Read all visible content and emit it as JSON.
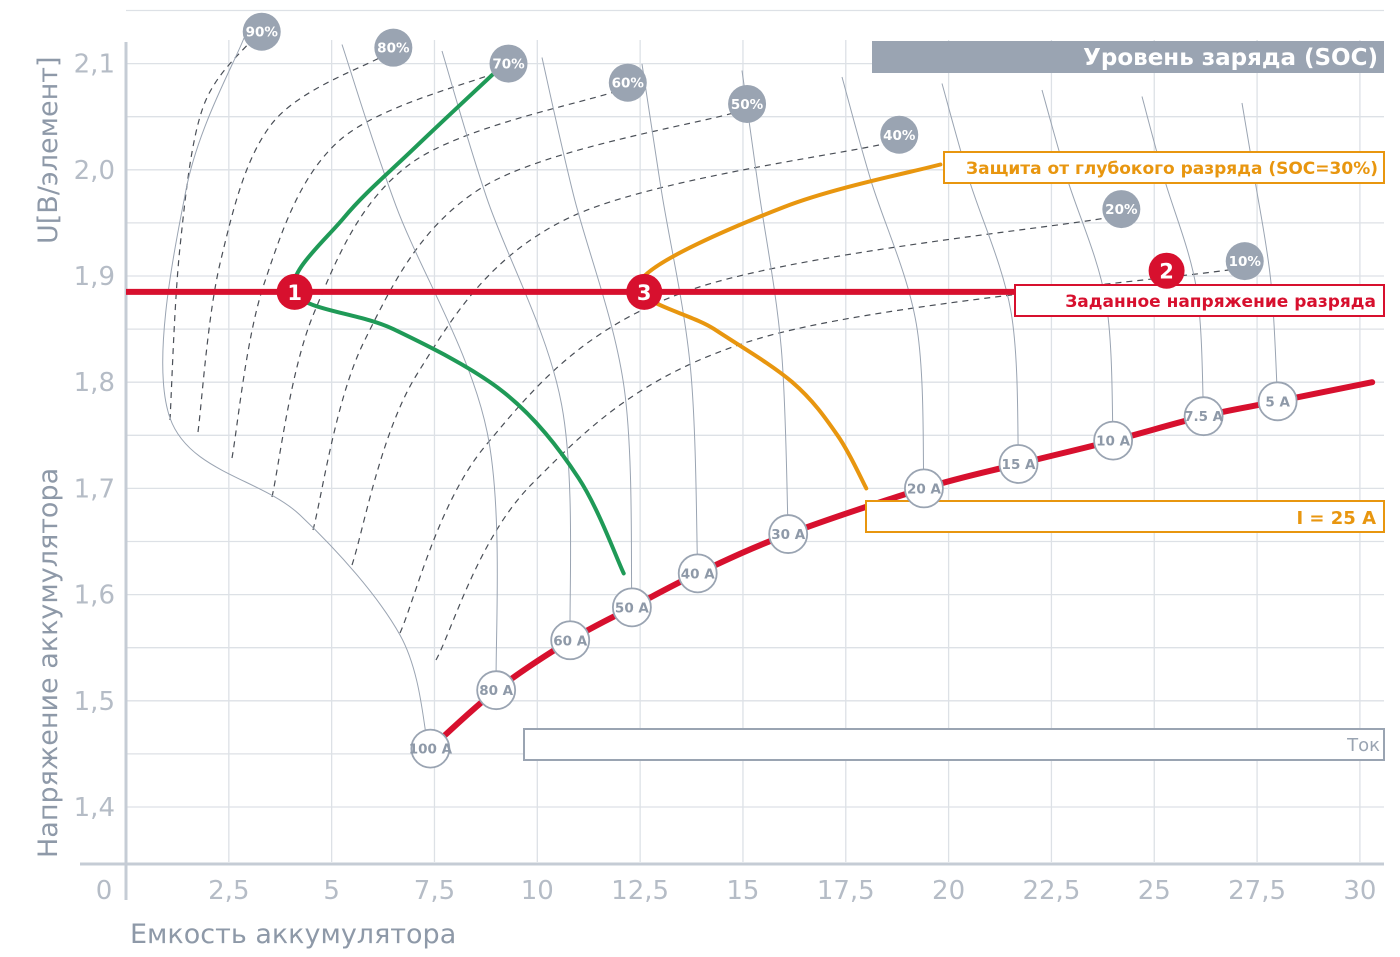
{
  "chart_data": {
    "type": "line",
    "title": "Уровень заряда (SOC)",
    "xlabel": "Емкость аккумулятора",
    "ylabel_top": "U[В/элемент]",
    "ylabel": "Напряжение аккумулятора",
    "xlim": [
      0,
      30
    ],
    "ylim": [
      1.35,
      2.15
    ],
    "x_ticks": [
      "0",
      "2,5",
      "5",
      "7,5",
      "10",
      "12,5",
      "15",
      "17,5",
      "20",
      "22,5",
      "25",
      "27,5",
      "30"
    ],
    "y_ticks": [
      "1,4",
      "1,5",
      "1,6",
      "1,7",
      "1,8",
      "1,9",
      "2,0",
      "2,1"
    ],
    "grid": true,
    "soc_levels": [
      {
        "label": "90%",
        "x": 3.3,
        "y": 2.13
      },
      {
        "label": "80%",
        "x": 6.5,
        "y": 2.115
      },
      {
        "label": "70%",
        "x": 9.3,
        "y": 2.1
      },
      {
        "label": "60%",
        "x": 12.2,
        "y": 2.082
      },
      {
        "label": "50%",
        "x": 15.1,
        "y": 2.062
      },
      {
        "label": "40%",
        "x": 18.8,
        "y": 2.033
      },
      {
        "label": "20%",
        "x": 24.2,
        "y": 1.963
      },
      {
        "label": "10%",
        "x": 27.2,
        "y": 1.914
      }
    ],
    "currents": [
      {
        "label": "100 A",
        "x": 7.4,
        "y": 1.455
      },
      {
        "label": "80 A",
        "x": 9.0,
        "y": 1.51
      },
      {
        "label": "60 A",
        "x": 10.8,
        "y": 1.557
      },
      {
        "label": "50 A",
        "x": 12.3,
        "y": 1.588
      },
      {
        "label": "40 A",
        "x": 13.9,
        "y": 1.62
      },
      {
        "label": "30 A",
        "x": 16.1,
        "y": 1.657
      },
      {
        "label": "20 A",
        "x": 19.4,
        "y": 1.7
      },
      {
        "label": "15 A",
        "x": 21.7,
        "y": 1.723
      },
      {
        "label": "10 A",
        "x": 24.0,
        "y": 1.745
      },
      {
        "label": "7.5 A",
        "x": 26.2,
        "y": 1.768
      },
      {
        "label": "5 A",
        "x": 28.0,
        "y": 1.782
      }
    ],
    "current_envelope": [
      [
        7.4,
        1.455
      ],
      [
        9.0,
        1.51
      ],
      [
        10.8,
        1.557
      ],
      [
        12.3,
        1.588
      ],
      [
        13.9,
        1.62
      ],
      [
        16.1,
        1.657
      ],
      [
        19.4,
        1.7
      ],
      [
        21.7,
        1.723
      ],
      [
        24.0,
        1.745
      ],
      [
        26.2,
        1.768
      ],
      [
        28.0,
        1.782
      ],
      [
        30.3,
        1.8
      ]
    ],
    "discharge_voltage": 1.885,
    "series": [
      {
        "color": "#1f9a57",
        "points": [
          [
            9.2,
            2.1
          ],
          [
            7.0,
            2.02
          ],
          [
            5.3,
            1.955
          ],
          [
            4.1,
            1.885
          ],
          [
            6.5,
            1.85
          ],
          [
            9.2,
            1.79
          ],
          [
            11.0,
            1.71
          ],
          [
            12.1,
            1.62
          ]
        ]
      },
      {
        "color": "#e8960f",
        "points": [
          [
            19.8,
            2.005
          ],
          [
            16.0,
            1.965
          ],
          [
            12.5,
            1.895
          ],
          [
            14.3,
            1.85
          ],
          [
            16.2,
            1.8
          ],
          [
            17.3,
            1.75
          ],
          [
            18.0,
            1.7
          ]
        ]
      }
    ],
    "markers": [
      {
        "label": "1",
        "x": 4.1,
        "y": 1.885
      },
      {
        "label": "2",
        "x": 25.3,
        "y": 1.905
      },
      {
        "label": "3",
        "x": 12.6,
        "y": 1.885
      }
    ],
    "annotations": {
      "deep_discharge": "Защита от глубокого разряда (SOC=30%)",
      "discharge_voltage": "Заданное напряжение разряда",
      "current_value": "I = 25 A",
      "current": "Ток"
    },
    "colors": {
      "red": "#d7102e",
      "green": "#1f9a57",
      "orange": "#e8960f",
      "grey": "#9aa4b2",
      "grid": "#dde1e6"
    }
  }
}
